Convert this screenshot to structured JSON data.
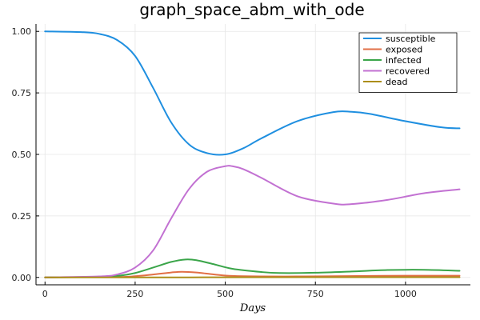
{
  "chart_data": {
    "type": "line",
    "title": "graph_space_abm_with_ode",
    "xlabel": "Days",
    "ylabel": "",
    "xlim": [
      -25,
      1180
    ],
    "ylim": [
      -0.03,
      1.03
    ],
    "xticks": [
      0,
      250,
      500,
      750,
      1000
    ],
    "yticks": [
      0.0,
      0.25,
      0.5,
      0.75,
      1.0
    ],
    "xtick_labels": [
      "0",
      "250",
      "500",
      "750",
      "1000"
    ],
    "ytick_labels": [
      "0.00",
      "0.25",
      "0.50",
      "0.75",
      "1.00"
    ],
    "grid": true,
    "legend_position": "top-right",
    "series": [
      {
        "name": "susceptible",
        "color": "#1f8fe0",
        "points": [
          [
            0,
            1.0
          ],
          [
            100,
            0.997
          ],
          [
            150,
            0.99
          ],
          [
            200,
            0.965
          ],
          [
            250,
            0.9
          ],
          [
            300,
            0.77
          ],
          [
            350,
            0.63
          ],
          [
            400,
            0.54
          ],
          [
            450,
            0.505
          ],
          [
            500,
            0.5
          ],
          [
            550,
            0.525
          ],
          [
            600,
            0.565
          ],
          [
            700,
            0.635
          ],
          [
            800,
            0.672
          ],
          [
            850,
            0.673
          ],
          [
            900,
            0.665
          ],
          [
            1000,
            0.635
          ],
          [
            1100,
            0.61
          ],
          [
            1150,
            0.606
          ]
        ]
      },
      {
        "name": "exposed",
        "color": "#e26f46",
        "points": [
          [
            0,
            0.0
          ],
          [
            200,
            0.002
          ],
          [
            250,
            0.005
          ],
          [
            300,
            0.012
          ],
          [
            350,
            0.02
          ],
          [
            380,
            0.023
          ],
          [
            420,
            0.02
          ],
          [
            470,
            0.012
          ],
          [
            520,
            0.006
          ],
          [
            600,
            0.004
          ],
          [
            700,
            0.004
          ],
          [
            800,
            0.005
          ],
          [
            900,
            0.006
          ],
          [
            1000,
            0.007
          ],
          [
            1100,
            0.007
          ],
          [
            1150,
            0.007
          ]
        ]
      },
      {
        "name": "infected",
        "color": "#3ba54a",
        "points": [
          [
            0,
            0.0
          ],
          [
            150,
            0.002
          ],
          [
            200,
            0.006
          ],
          [
            250,
            0.018
          ],
          [
            300,
            0.04
          ],
          [
            350,
            0.063
          ],
          [
            390,
            0.073
          ],
          [
            420,
            0.07
          ],
          [
            470,
            0.053
          ],
          [
            520,
            0.035
          ],
          [
            600,
            0.022
          ],
          [
            650,
            0.018
          ],
          [
            750,
            0.019
          ],
          [
            850,
            0.024
          ],
          [
            950,
            0.03
          ],
          [
            1050,
            0.031
          ],
          [
            1150,
            0.027
          ]
        ]
      },
      {
        "name": "recovered",
        "color": "#c271d2",
        "points": [
          [
            0,
            0.0
          ],
          [
            150,
            0.004
          ],
          [
            200,
            0.012
          ],
          [
            250,
            0.04
          ],
          [
            300,
            0.11
          ],
          [
            350,
            0.24
          ],
          [
            400,
            0.36
          ],
          [
            450,
            0.43
          ],
          [
            500,
            0.452
          ],
          [
            520,
            0.452
          ],
          [
            550,
            0.44
          ],
          [
            600,
            0.405
          ],
          [
            700,
            0.33
          ],
          [
            800,
            0.3
          ],
          [
            850,
            0.298
          ],
          [
            950,
            0.315
          ],
          [
            1050,
            0.342
          ],
          [
            1150,
            0.358
          ]
        ]
      },
      {
        "name": "dead",
        "color": "#ac8d18",
        "points": [
          [
            0,
            0.0
          ],
          [
            300,
            0.0
          ],
          [
            500,
            0.0005
          ],
          [
            800,
            0.001
          ],
          [
            1150,
            0.001
          ]
        ]
      }
    ]
  }
}
